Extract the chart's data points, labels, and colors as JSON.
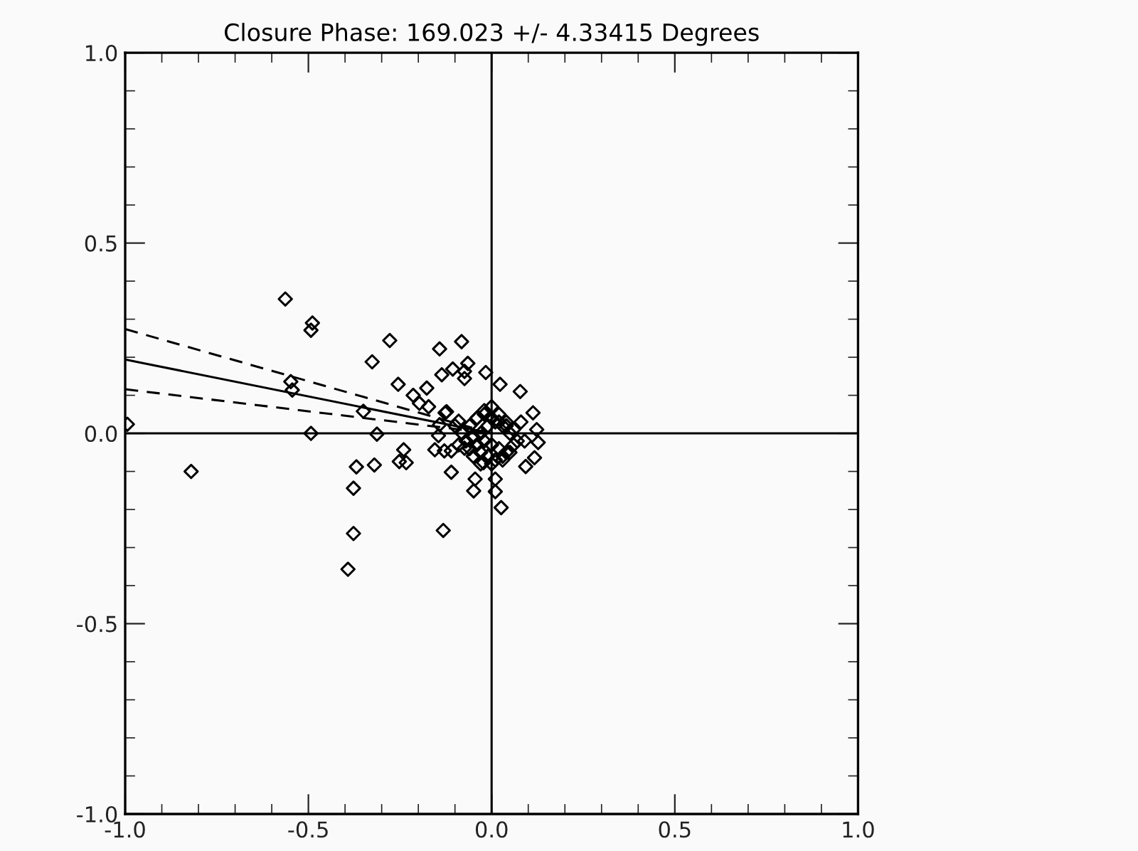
{
  "chart_data": {
    "type": "scatter",
    "title": "Closure Phase: 169.023 +/- 4.33415 Degrees",
    "xlim": [
      -1,
      1
    ],
    "ylim": [
      -1,
      1
    ],
    "xticks": [
      {
        "value": -1,
        "label": "-1.0"
      },
      {
        "value": -0.5,
        "label": "-0.5"
      },
      {
        "value": 0,
        "label": "0.0"
      },
      {
        "value": 0.5,
        "label": "0.5"
      },
      {
        "value": 1,
        "label": "1.0"
      }
    ],
    "yticks": [
      {
        "value": -1,
        "label": "-1.0"
      },
      {
        "value": -0.5,
        "label": "-0.5"
      },
      {
        "value": 0,
        "label": "0.0"
      },
      {
        "value": 0.5,
        "label": "0.5"
      },
      {
        "value": 1,
        "label": "1.0"
      }
    ],
    "grid": false,
    "marker": "diamond",
    "series": [
      {
        "color": "#000000",
        "x": [
          -0.563,
          -0.489,
          -0.493,
          -0.548,
          -0.544,
          -0.493,
          -0.82,
          -0.994,
          -0.369,
          -0.377,
          -0.377,
          -0.392,
          -0.278,
          -0.326,
          -0.142,
          -0.082,
          -0.136,
          -0.106,
          -0.074,
          -0.065,
          -0.074,
          -0.016,
          -0.255,
          -0.177,
          -0.214,
          -0.197,
          -0.172,
          0.023,
          0.078,
          -0.35,
          -0.123,
          -0.313,
          -0.145,
          -0.24,
          -0.252,
          -0.233,
          -0.32,
          -0.155,
          -0.129,
          -0.11,
          -0.074,
          -0.11,
          -0.022,
          -0.045,
          -0.049,
          0.01,
          0.01,
          0.026,
          -0.132,
          0.093,
          0.117,
          0.127,
          0.123,
          0.113,
          -0.127,
          -0.09,
          -0.142,
          -0.08,
          -0.06,
          -0.04,
          -0.02,
          0.0,
          0.02,
          0.04,
          0.06,
          -0.07,
          -0.05,
          -0.03,
          -0.01,
          0.01,
          0.03,
          0.05,
          0.07,
          -0.06,
          -0.04,
          -0.02,
          0.0,
          0.02,
          0.04,
          0.06,
          -0.05,
          -0.03,
          -0.01,
          0.01,
          0.03,
          0.05,
          -0.04,
          -0.02,
          0.0,
          0.02,
          0.04,
          -0.03,
          0.0,
          0.03,
          -0.1,
          0.08,
          -0.09,
          0.09
        ],
        "values": [
          0.353,
          0.29,
          0.271,
          0.136,
          0.114,
          0.0,
          -0.1,
          0.024,
          -0.088,
          -0.144,
          -0.263,
          -0.357,
          0.244,
          0.188,
          0.222,
          0.241,
          0.154,
          0.169,
          0.163,
          0.184,
          0.144,
          0.16,
          0.129,
          0.119,
          0.1,
          0.079,
          0.07,
          0.129,
          0.11,
          0.058,
          0.057,
          -0.002,
          -0.006,
          -0.043,
          -0.074,
          -0.077,
          -0.083,
          -0.043,
          -0.046,
          -0.046,
          -0.039,
          -0.102,
          -0.077,
          -0.12,
          -0.151,
          -0.12,
          -0.153,
          -0.195,
          -0.255,
          -0.087,
          -0.064,
          -0.024,
          0.01,
          0.054,
          0.054,
          0.032,
          0.023,
          0.0,
          0.02,
          0.04,
          0.06,
          0.07,
          0.05,
          0.03,
          0.01,
          -0.02,
          -0.01,
          0.0,
          0.02,
          0.03,
          0.02,
          0.0,
          -0.02,
          -0.04,
          -0.03,
          -0.02,
          -0.03,
          -0.04,
          -0.05,
          -0.03,
          -0.06,
          -0.05,
          -0.06,
          -0.07,
          -0.06,
          -0.05,
          0.04,
          0.05,
          0.04,
          0.03,
          0.02,
          -0.08,
          -0.08,
          -0.07,
          0.02,
          0.03,
          -0.03,
          -0.02
        ]
      },
      {
        "type": "line",
        "color": "#000000",
        "marker": "none",
        "line_style": "solid",
        "x": [
          0,
          0
        ],
        "values": [
          -1,
          1
        ]
      },
      {
        "type": "line",
        "color": "#000000",
        "marker": "none",
        "line_style": "solid",
        "x": [
          -1,
          1
        ],
        "values": [
          0,
          0
        ]
      },
      {
        "type": "line",
        "color": "#000000",
        "marker": "none",
        "line_style": "solid",
        "x": [
          -1,
          0
        ],
        "values": [
          0.194,
          0
        ]
      },
      {
        "type": "line",
        "color": "#000000",
        "marker": "none",
        "line_style": "dashed",
        "x": [
          -1,
          0
        ],
        "values": [
          0.274,
          0
        ]
      },
      {
        "type": "line",
        "color": "#000000",
        "marker": "none",
        "line_style": "dashed",
        "x": [
          -1,
          0
        ],
        "values": [
          0.116,
          0
        ]
      }
    ]
  }
}
